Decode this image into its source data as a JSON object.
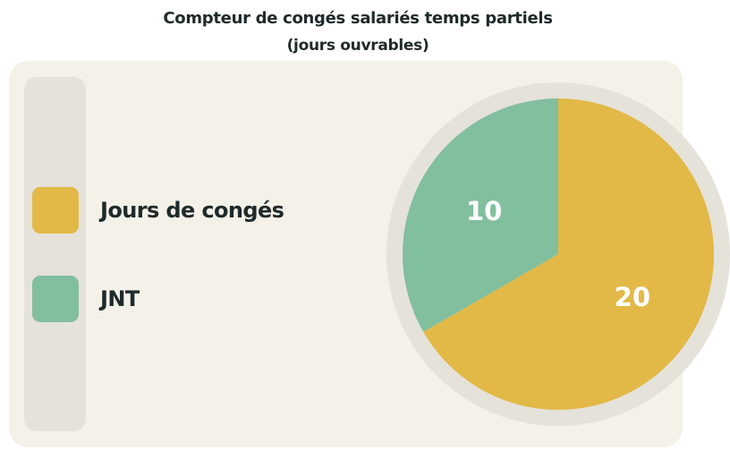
{
  "chart_data": {
    "type": "pie",
    "title": "Compteur de congés salariés temps partiels",
    "subtitle": "(jours ouvrables)",
    "categories": [
      "Jours de congés",
      "JNT"
    ],
    "values": [
      20,
      10
    ],
    "colors": [
      "#e2b947",
      "#82bf9e"
    ],
    "legend_placement": "left",
    "start_angle": "top",
    "direction": "clockwise",
    "data_labels": [
      "20",
      "10"
    ]
  },
  "colors": {
    "card_background": "#f4f1e9",
    "pie_ring": "#e5e2da",
    "label_text": "#ffffff"
  }
}
